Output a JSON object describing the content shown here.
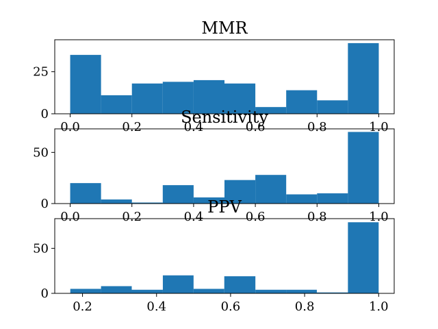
{
  "chart_data": [
    {
      "type": "bar",
      "title": "MMR",
      "xlabel": "",
      "ylabel": "",
      "bin_edges": [
        0.0,
        0.1,
        0.2,
        0.3,
        0.4,
        0.5,
        0.6,
        0.7,
        0.8,
        0.9,
        1.0
      ],
      "values": [
        35,
        11,
        18,
        19,
        20,
        18,
        4,
        14,
        8,
        42
      ],
      "xlim": [
        -0.05,
        1.05
      ],
      "ylim": [
        0,
        44
      ],
      "xticks": [
        0.0,
        0.2,
        0.4,
        0.6,
        0.8,
        1.0
      ],
      "xtick_labels": [
        "0.0",
        "0.2",
        "0.4",
        "0.6",
        "0.8",
        "1.0"
      ],
      "yticks": [
        0,
        25
      ],
      "ytick_labels": [
        "0",
        "25"
      ],
      "color": "#1f77b4"
    },
    {
      "type": "bar",
      "title": "Sensitivity",
      "xlabel": "",
      "ylabel": "",
      "bin_edges": [
        0.0,
        0.1,
        0.2,
        0.3,
        0.4,
        0.5,
        0.6,
        0.7,
        0.8,
        0.9,
        1.0
      ],
      "values": [
        20,
        4,
        1,
        18,
        6,
        23,
        28,
        9,
        10,
        70
      ],
      "xlim": [
        -0.05,
        1.05
      ],
      "ylim": [
        0,
        73
      ],
      "xticks": [
        0.0,
        0.2,
        0.4,
        0.6,
        0.8,
        1.0
      ],
      "xtick_labels": [
        "0.0",
        "0.2",
        "0.4",
        "0.6",
        "0.8",
        "1.0"
      ],
      "yticks": [
        0,
        50
      ],
      "ytick_labels": [
        "0",
        "50"
      ],
      "color": "#1f77b4"
    },
    {
      "type": "bar",
      "title": "PPV",
      "xlabel": "",
      "ylabel": "",
      "bin_edges": [
        0.167,
        0.25,
        0.333,
        0.417,
        0.5,
        0.583,
        0.667,
        0.75,
        0.833,
        0.917,
        1.0
      ],
      "values": [
        5,
        8,
        4,
        20,
        5,
        19,
        4,
        4,
        1,
        79
      ],
      "xlim": [
        0.125,
        1.042
      ],
      "ylim": [
        0,
        83
      ],
      "xticks": [
        0.2,
        0.4,
        0.6,
        0.8,
        1.0
      ],
      "xtick_labels": [
        "0.2",
        "0.4",
        "0.6",
        "0.8",
        "1.0"
      ],
      "yticks": [
        0,
        50
      ],
      "ytick_labels": [
        "0",
        "50"
      ],
      "color": "#1f77b4"
    }
  ]
}
